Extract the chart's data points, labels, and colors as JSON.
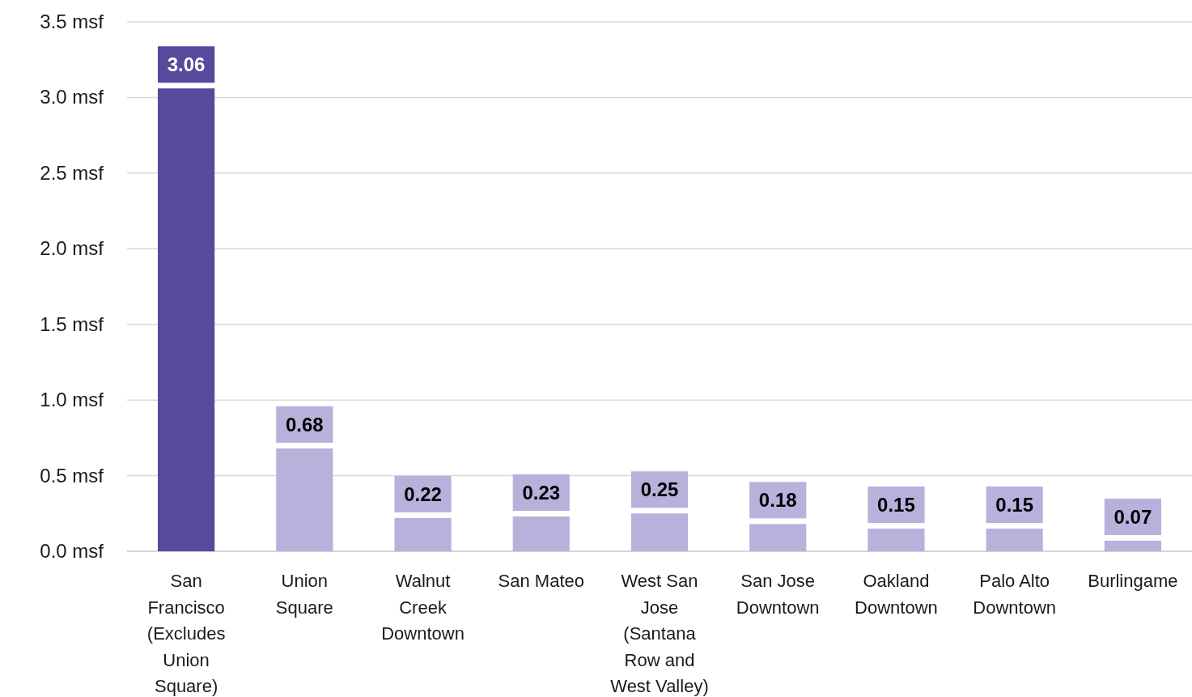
{
  "chart_data": {
    "type": "bar",
    "categories": [
      "San Francisco (Excludes Union Square)",
      "Union Square",
      "Walnut Creek Downtown",
      "San Mateo",
      "West San Jose (Santana Row and West Valley)",
      "San Jose Downtown",
      "Oakland Downtown",
      "Palo Alto Downtown",
      "Burlingame"
    ],
    "values": [
      3.06,
      0.68,
      0.22,
      0.23,
      0.25,
      0.18,
      0.15,
      0.15,
      0.07
    ],
    "colors": [
      "#554a9c",
      "#b8b1dc",
      "#b8b1dc",
      "#b8b1dc",
      "#b8b1dc",
      "#b8b1dc",
      "#b8b1dc",
      "#b8b1dc",
      "#b8b1dc"
    ],
    "ylim": [
      0,
      3.5
    ],
    "yticks": [
      {
        "value": 0,
        "label": "0.0 msf"
      },
      {
        "value": 0.5,
        "label": "0.5 msf"
      },
      {
        "value": 1,
        "label": "1.0 msf"
      },
      {
        "value": 1.5,
        "label": "1.5 msf"
      },
      {
        "value": 2,
        "label": "2.0 msf"
      },
      {
        "value": 2.5,
        "label": "2.5 msf"
      },
      {
        "value": 3,
        "label": "3.0 msf"
      },
      {
        "value": 3.5,
        "label": "3.5 msf"
      }
    ],
    "grid": "y",
    "data_labels": true
  }
}
